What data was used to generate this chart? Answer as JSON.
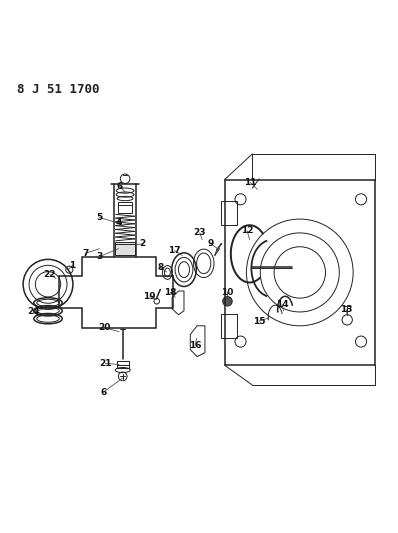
{
  "title_code": "8 J 51 1700",
  "bg_color": "#ffffff",
  "line_color": "#222222",
  "label_color": "#111111",
  "figsize": [
    3.98,
    5.33
  ],
  "dpi": 100
}
